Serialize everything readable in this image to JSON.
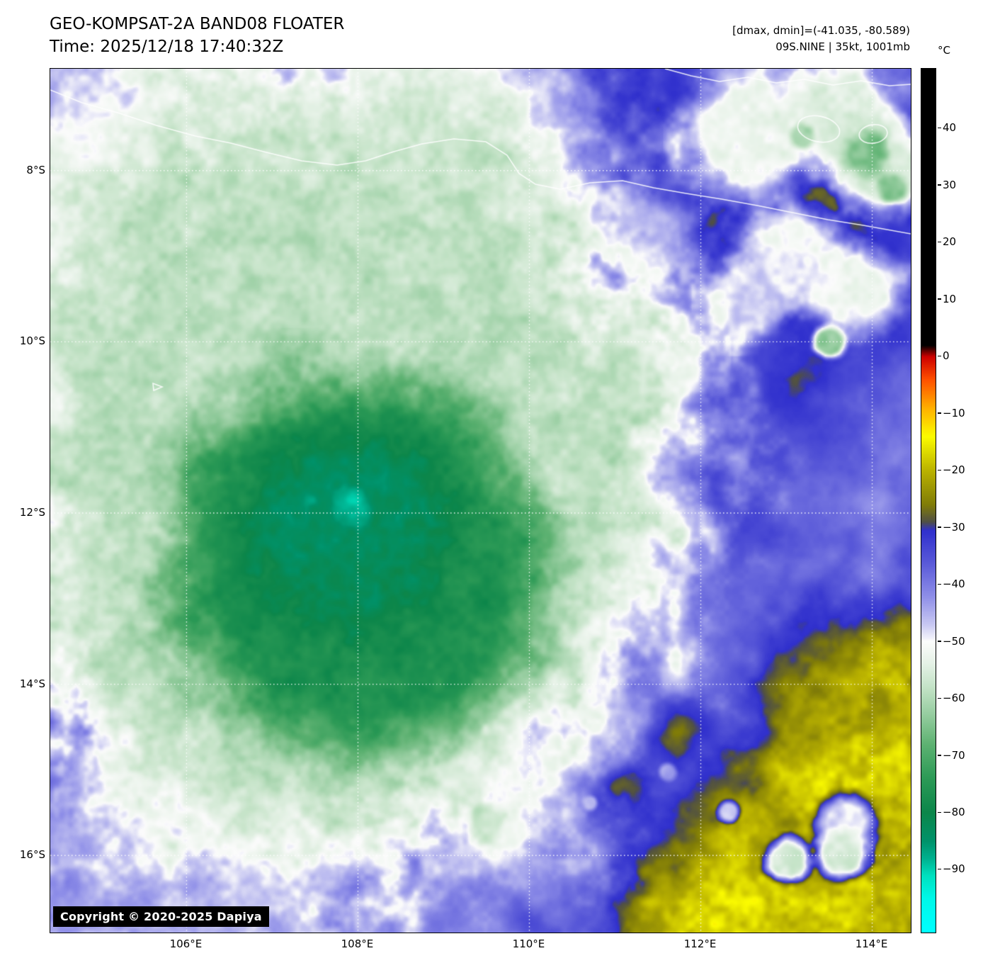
{
  "header": {
    "title": "GEO-KOMPSAT-2A BAND08 FLOATER",
    "time": "Time: 2025/12/18 17:40:32Z",
    "dmax_dmin": "[dmax, dmin]=(-41.035, -80.589)",
    "storm_info": "09S.NINE | 35kt, 1001mb"
  },
  "map": {
    "copyright": "Copyright © 2020-2025 Dapiya",
    "lat_ticks": [
      {
        "label": "8°S",
        "value": 8
      },
      {
        "label": "10°S",
        "value": 10
      },
      {
        "label": "12°S",
        "value": 12
      },
      {
        "label": "14°S",
        "value": 14
      },
      {
        "label": "16°S",
        "value": 16
      }
    ],
    "lon_ticks": [
      {
        "label": "106°E",
        "value": 106
      },
      {
        "label": "108°E",
        "value": 108
      },
      {
        "label": "110°E",
        "value": 110
      },
      {
        "label": "112°E",
        "value": 112
      },
      {
        "label": "114°E",
        "value": 114
      }
    ]
  },
  "colorbar": {
    "unit": "°C",
    "ticks": [
      {
        "label": "40",
        "value": 40
      },
      {
        "label": "30",
        "value": 30
      },
      {
        "label": "20",
        "value": 20
      },
      {
        "label": "10",
        "value": 10
      },
      {
        "label": "0",
        "value": 0
      },
      {
        "label": "−10",
        "value": -10
      },
      {
        "label": "−20",
        "value": -20
      },
      {
        "label": "−30",
        "value": -30
      },
      {
        "label": "−40",
        "value": -40
      },
      {
        "label": "−50",
        "value": -50
      },
      {
        "label": "−60",
        "value": -60
      },
      {
        "label": "−70",
        "value": -70
      },
      {
        "label": "−80",
        "value": -80
      },
      {
        "label": "−90",
        "value": -90
      }
    ]
  },
  "colors": {
    "deep_convection_green": "#0a8a4a",
    "cloud_top_teal": "#00c8a0",
    "warm_sea_olive": "#b4ae00",
    "background_blue": "#4646cc",
    "cold_white": "#ffffff",
    "colorbar_black": "#000000",
    "gridline_white": "#ffffff"
  }
}
